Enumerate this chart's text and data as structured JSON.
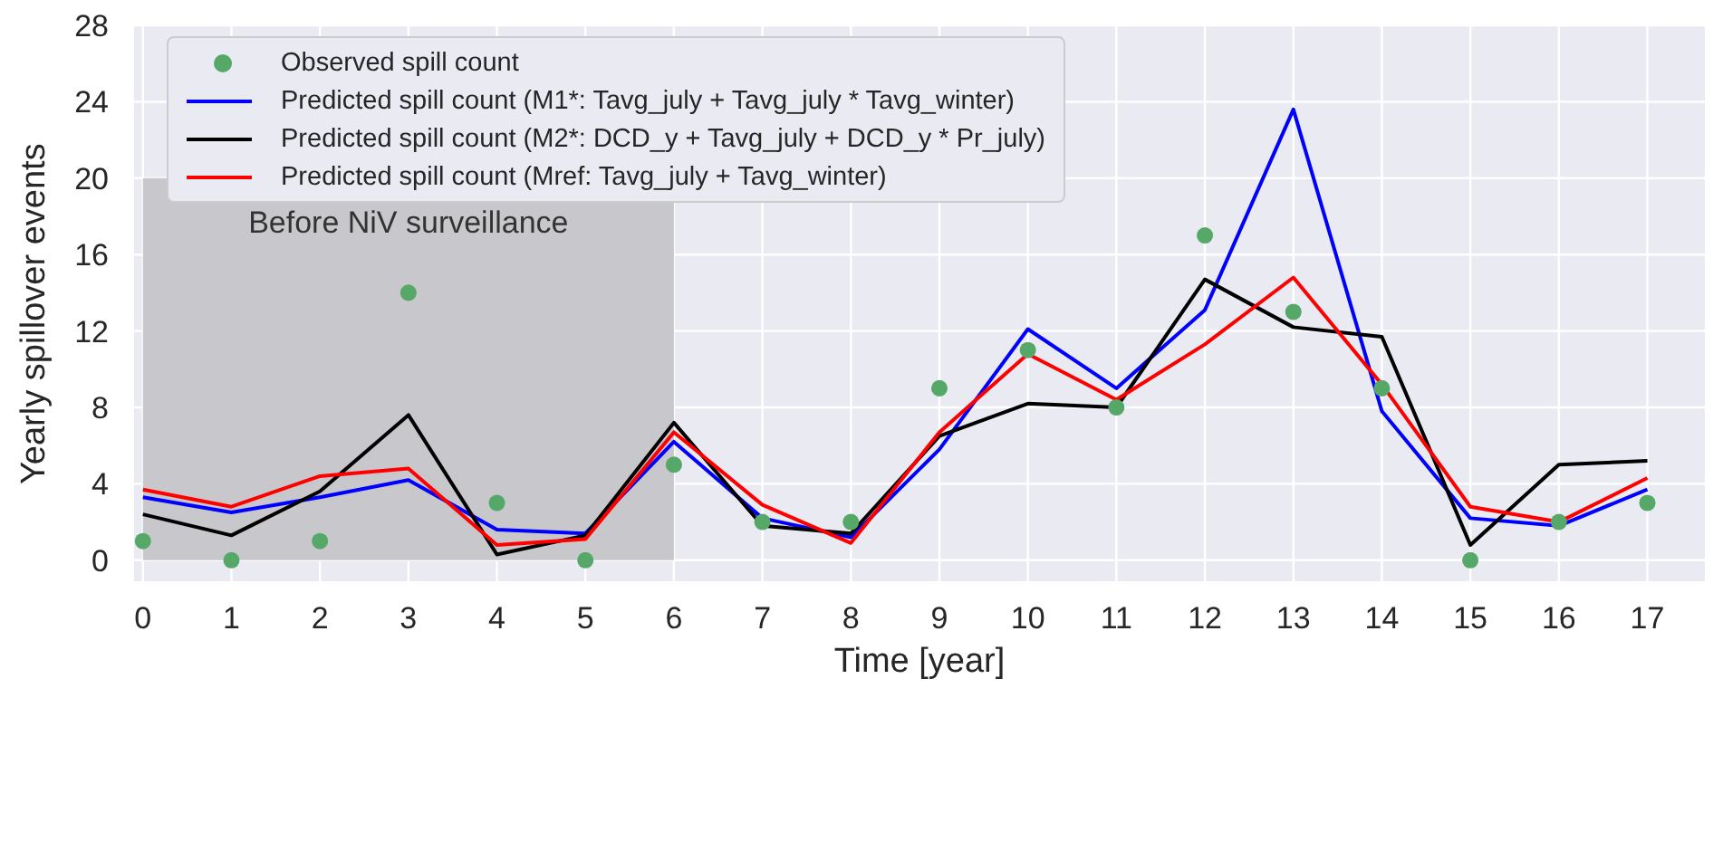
{
  "chart_data": {
    "type": "line",
    "xlabel": "Time [year]",
    "ylabel": "Yearly spillover events",
    "x": [
      0,
      1,
      2,
      3,
      4,
      5,
      6,
      7,
      8,
      9,
      10,
      11,
      12,
      13,
      14,
      15,
      16,
      17
    ],
    "series": [
      {
        "name": "Observed spill count",
        "type": "scatter",
        "marker": "circle",
        "color": "#55a868",
        "values": [
          1,
          0,
          1,
          14,
          3,
          0,
          5,
          2,
          2,
          9,
          11,
          8,
          17,
          13,
          9,
          0,
          2,
          3
        ]
      },
      {
        "name": "Predicted spill count (M1*: Tavg_july + Tavg_july * Tavg_winter)",
        "color": "#0000ff",
        "values": [
          3.3,
          2.5,
          3.3,
          4.2,
          1.6,
          1.4,
          6.2,
          2.2,
          1.2,
          5.8,
          12.1,
          9.0,
          13.1,
          23.6,
          7.8,
          2.2,
          1.8,
          3.7
        ]
      },
      {
        "name": "Predicted spill count (M2*: DCD_y + Tavg_july + DCD_y * Pr_july)",
        "color": "#000000",
        "values": [
          2.4,
          1.3,
          3.6,
          7.6,
          0.3,
          1.3,
          7.2,
          1.8,
          1.4,
          6.5,
          8.2,
          8.0,
          14.7,
          12.2,
          11.7,
          0.8,
          5.0,
          5.2
        ]
      },
      {
        "name": "Predicted spill count (Mref: Tavg_july + Tavg_winter)",
        "color": "#ff0000",
        "values": [
          3.7,
          2.8,
          4.4,
          4.8,
          0.8,
          1.1,
          6.7,
          2.9,
          0.9,
          6.7,
          10.8,
          8.4,
          11.3,
          14.8,
          9.2,
          2.8,
          2.0,
          4.3
        ]
      }
    ],
    "xlim": [
      -0.1,
      17.65
    ],
    "xticks": [
      0,
      1,
      2,
      3,
      4,
      5,
      6,
      7,
      8,
      9,
      10,
      11,
      12,
      13,
      14,
      15,
      16,
      17
    ],
    "ylim": [
      -1.1,
      28
    ],
    "yticks": [
      0,
      4,
      8,
      12,
      16,
      20,
      24,
      28
    ],
    "bands": [
      {
        "axis": "x",
        "from": 0,
        "to": 6,
        "label": "Before NiV surveillance",
        "color": "#c8c8cc"
      }
    ],
    "grid": true,
    "legend": "top left",
    "marker": "none",
    "line_style": "solid"
  }
}
